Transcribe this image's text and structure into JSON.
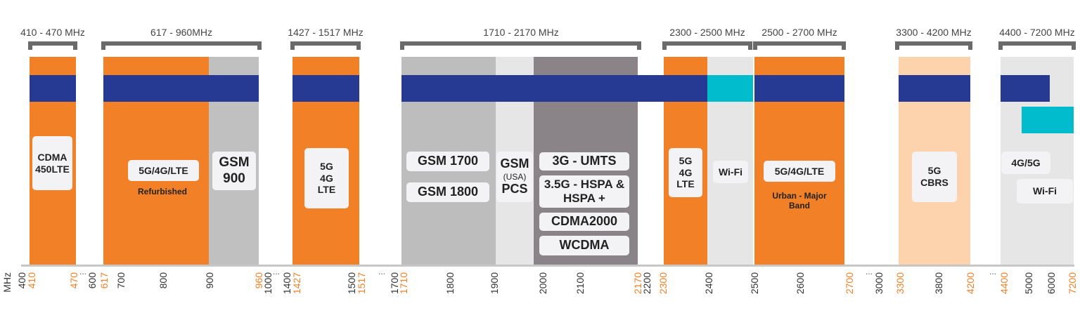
{
  "range_labels": [
    "410 - 470 MHz",
    "617 - 960MHz",
    "1427 - 1517 MHz",
    "1710 - 2170 MHz",
    "2300 - 2500 MHz",
    "2500 - 2700 MHz",
    "3300 - 4200 MHz",
    "4400 - 7200 MHz"
  ],
  "band_labels": {
    "cdma": "CDMA 450LTE",
    "lte_600": "5G/4G/LTE",
    "refurbished": "Refurbished",
    "gsm900": "GSM 900",
    "lte_1500": "5G 4G LTE",
    "gsm1700": "GSM 1700",
    "gsm1800": "GSM 1800",
    "gsm_pcs_1": "GSM",
    "gsm_pcs_2": "(USA)",
    "gsm_pcs_3": "PCS",
    "umts": "3G - UMTS",
    "hspa": "3.5G - HSPA & HSPA +",
    "cdma2000": "CDMA2000",
    "wcdma": "WCDMA",
    "lte_2300": "5G 4G LTE",
    "wifi_24": "Wi-Fi",
    "lte_2600": "5G/4G/LTE",
    "urban": "Urban - Major Band",
    "cbrs": "5G CBRS",
    "g45": "4G/5G",
    "wifi_5": "Wi-Fi"
  },
  "axis": {
    "unit": "MHz",
    "ticks": [
      {
        "v": "400",
        "hl": false
      },
      {
        "v": "410",
        "hl": true
      },
      {
        "v": "470",
        "hl": true
      },
      {
        "v": "600",
        "hl": false
      },
      {
        "v": "617",
        "hl": true
      },
      {
        "v": "700",
        "hl": false
      },
      {
        "v": "800",
        "hl": false
      },
      {
        "v": "900",
        "hl": false
      },
      {
        "v": "960",
        "hl": true
      },
      {
        "v": "1000",
        "hl": false
      },
      {
        "v": "1400",
        "hl": false
      },
      {
        "v": "1427",
        "hl": true
      },
      {
        "v": "1500",
        "hl": false
      },
      {
        "v": "1517",
        "hl": true
      },
      {
        "v": "1700",
        "hl": false
      },
      {
        "v": "1710",
        "hl": true
      },
      {
        "v": "1800",
        "hl": false
      },
      {
        "v": "1900",
        "hl": false
      },
      {
        "v": "2000",
        "hl": false
      },
      {
        "v": "2100",
        "hl": false
      },
      {
        "v": "2170",
        "hl": true
      },
      {
        "v": "2200",
        "hl": false
      },
      {
        "v": "2300",
        "hl": true
      },
      {
        "v": "2400",
        "hl": false
      },
      {
        "v": "2500",
        "hl": false
      },
      {
        "v": "2600",
        "hl": false
      },
      {
        "v": "2700",
        "hl": true
      },
      {
        "v": "3000",
        "hl": false
      },
      {
        "v": "3300",
        "hl": true
      },
      {
        "v": "3800",
        "hl": false
      },
      {
        "v": "4200",
        "hl": true
      },
      {
        "v": "4400",
        "hl": true
      },
      {
        "v": "5000",
        "hl": false
      },
      {
        "v": "6000",
        "hl": false
      },
      {
        "v": "7200",
        "hl": true
      }
    ],
    "break": "..."
  },
  "colors": {
    "licensed": "#f28026",
    "lte_bar": "#263a94",
    "wifi_bar": "#00bccc",
    "cbrs": "#fcd3ad",
    "legacy": "#8a8387"
  }
}
